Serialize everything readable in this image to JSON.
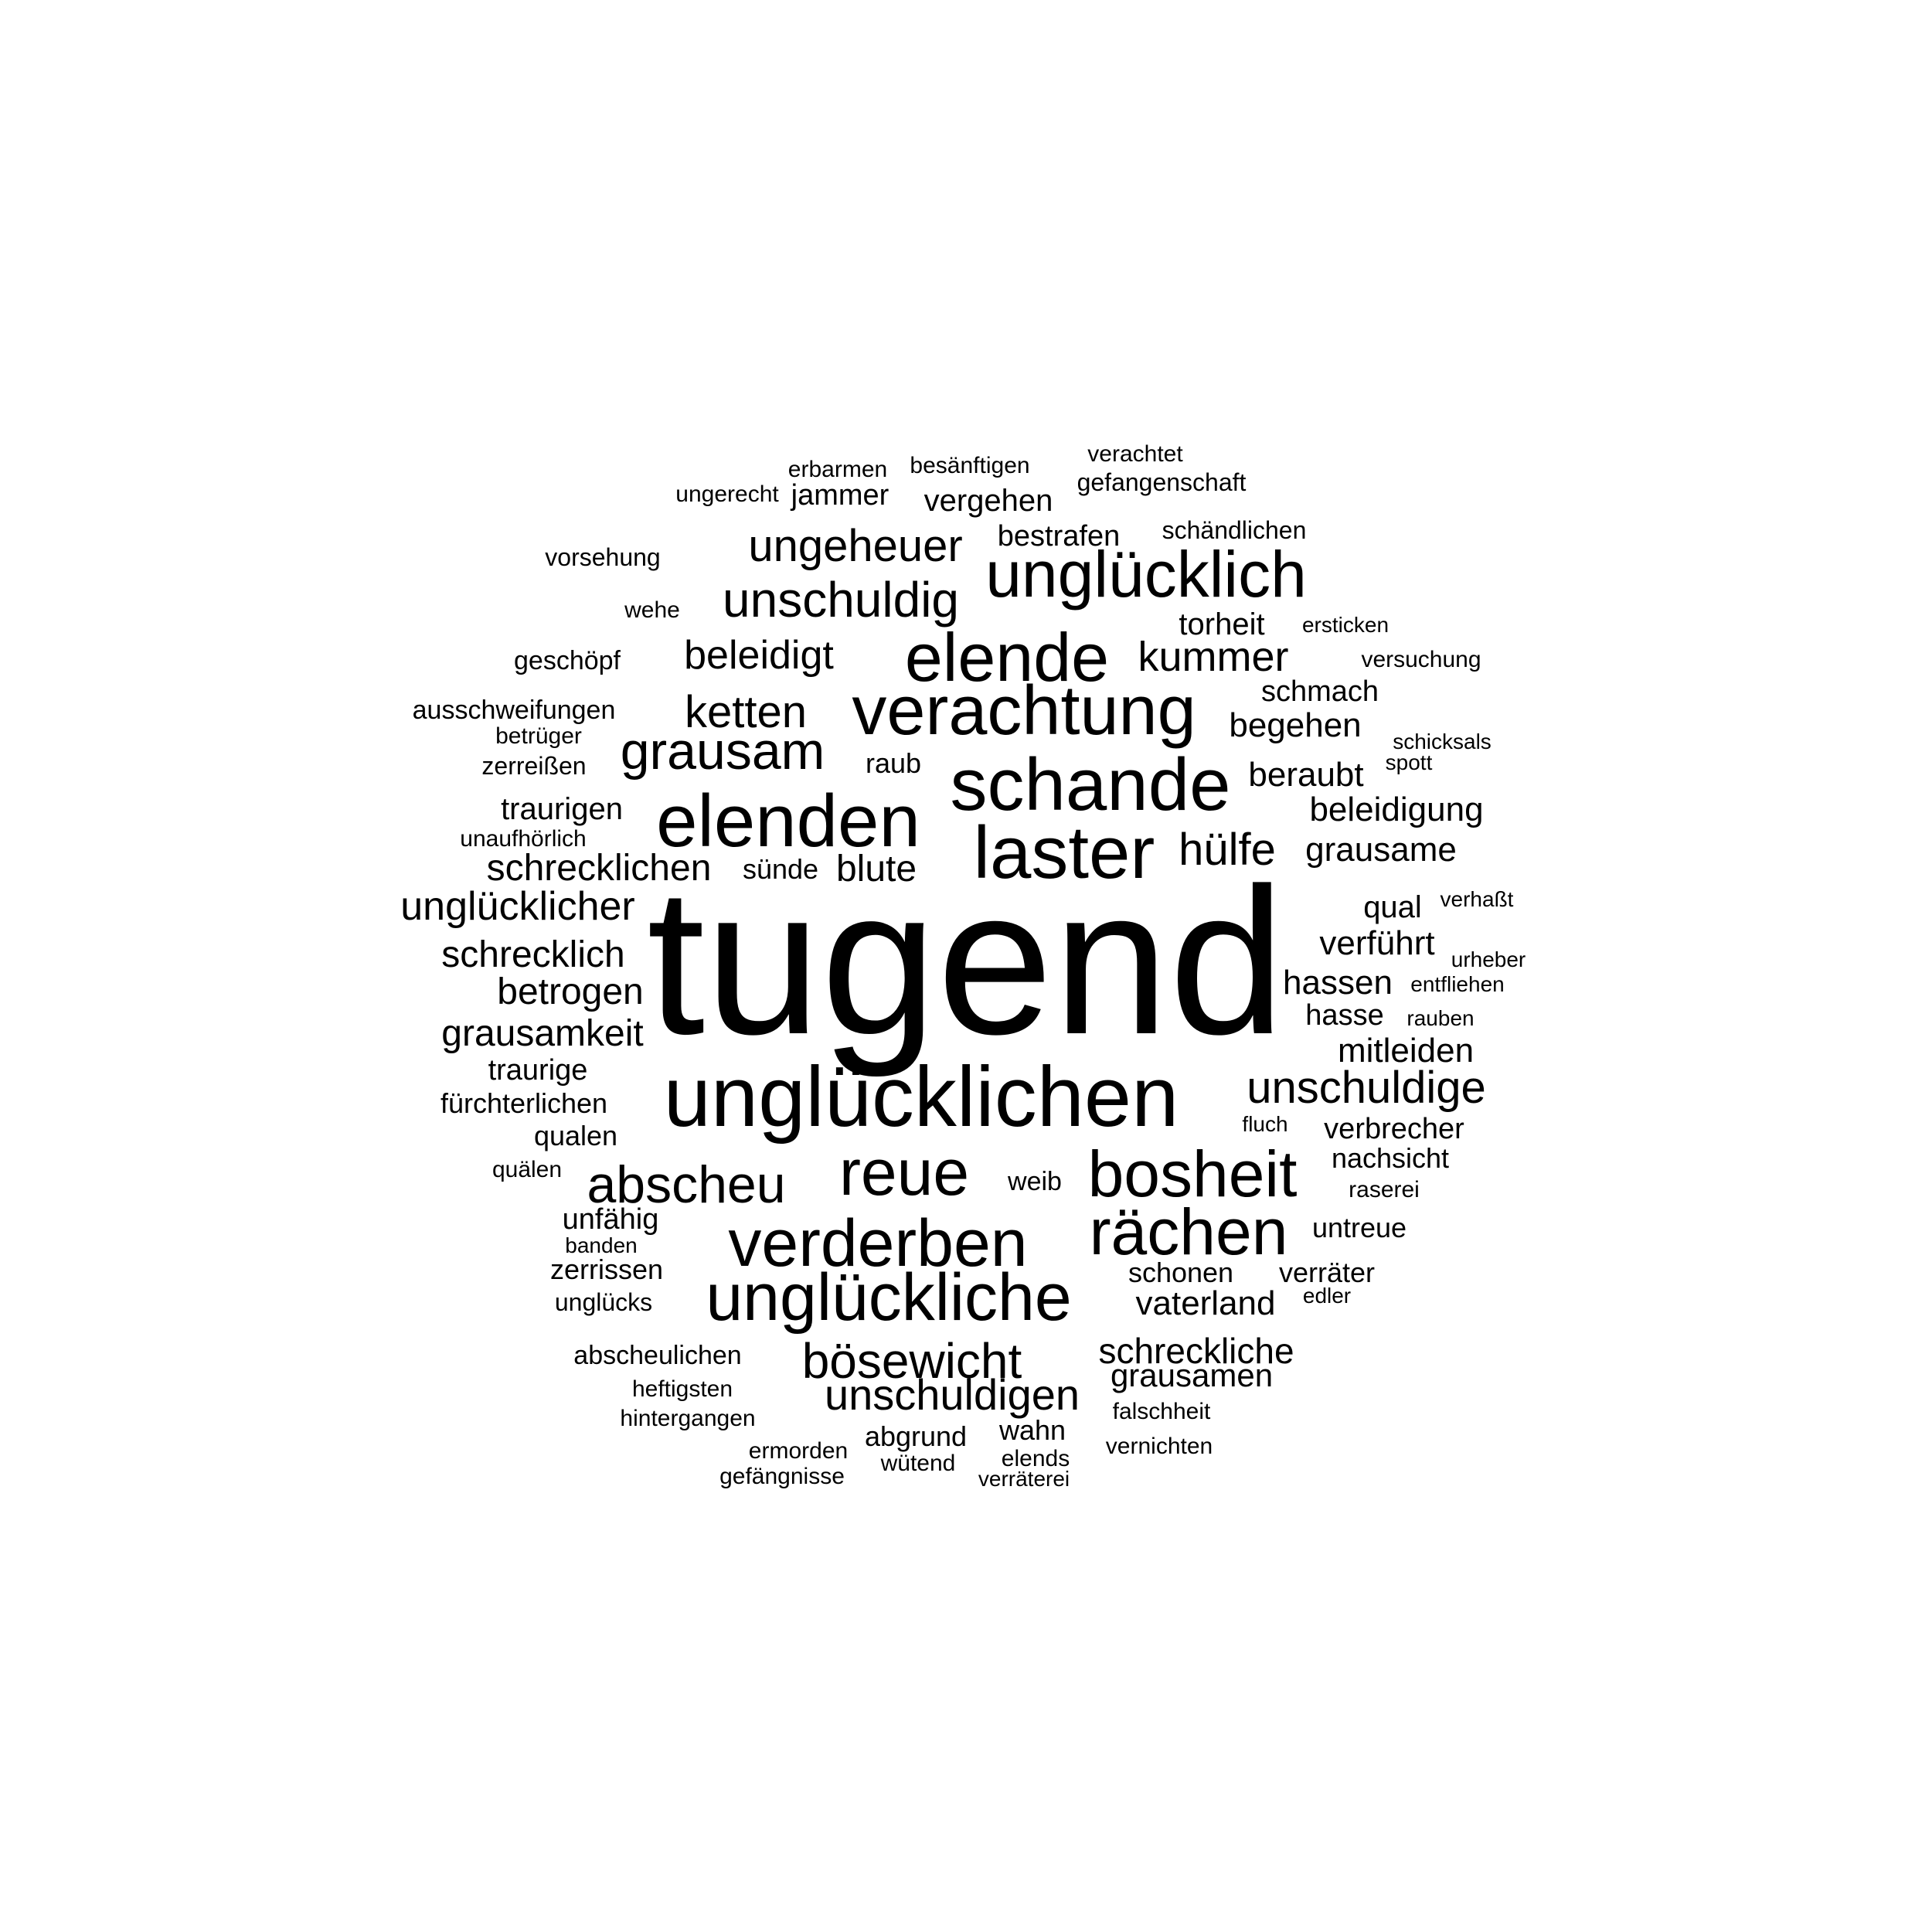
{
  "words": [
    "tugend",
    "unglücklichen",
    "elenden",
    "schande",
    "laster",
    "verachtung",
    "elende",
    "unglücklich",
    "unglückliche",
    "verderben",
    "rächen",
    "bosheit",
    "reue",
    "abscheu",
    "grausam",
    "unschuldig",
    "ungeheuer",
    "unschuldige",
    "bösewicht",
    "unschuldigen",
    "hülfe",
    "kummer",
    "ketten",
    "beleidigt",
    "schrecklichen",
    "unglücklicher",
    "schreckliche",
    "grausamkeit",
    "schrecklich",
    "betrogen",
    "blute",
    "grausame",
    "beleidigung",
    "beraubt",
    "begehen",
    "hassen",
    "mitleiden",
    "verführt",
    "grausamen",
    "vaterland",
    "traurigen",
    "schmach",
    "torheit",
    "qual",
    "verbrecher",
    "fürchterlichen",
    "schonen",
    "verräter",
    "untreue",
    "nachsicht",
    "vergehen",
    "bestrafen",
    "jammer",
    "abgrund",
    "wahn",
    "hasse",
    "traurige",
    "qualen",
    "unfähig",
    "zerrissen",
    "abscheulichen",
    "ausschweifungen",
    "sünde",
    "geschöpf",
    "vorsehung",
    "schändlichen",
    "gefangenschaft",
    "besänftigen",
    "erbarmen",
    "ungerecht",
    "verachtet",
    "raub",
    "zerreißen",
    "unaufhörlich",
    "weib",
    "unglücks",
    "heftigsten",
    "hintergangen",
    "falschheit",
    "vernichten",
    "ermorden",
    "gefängnisse",
    "wütend",
    "elends",
    "verräterei",
    "raserei",
    "wehe",
    "versuchung",
    "ersticken",
    "schicksals",
    "spott",
    "betrüger",
    "verhaßt",
    "urheber",
    "entfliehen",
    "rauben",
    "fluch",
    "quälen",
    "banden",
    "edler"
  ],
  "colors": {
    "background": "#ffffff",
    "text": "#000000"
  }
}
